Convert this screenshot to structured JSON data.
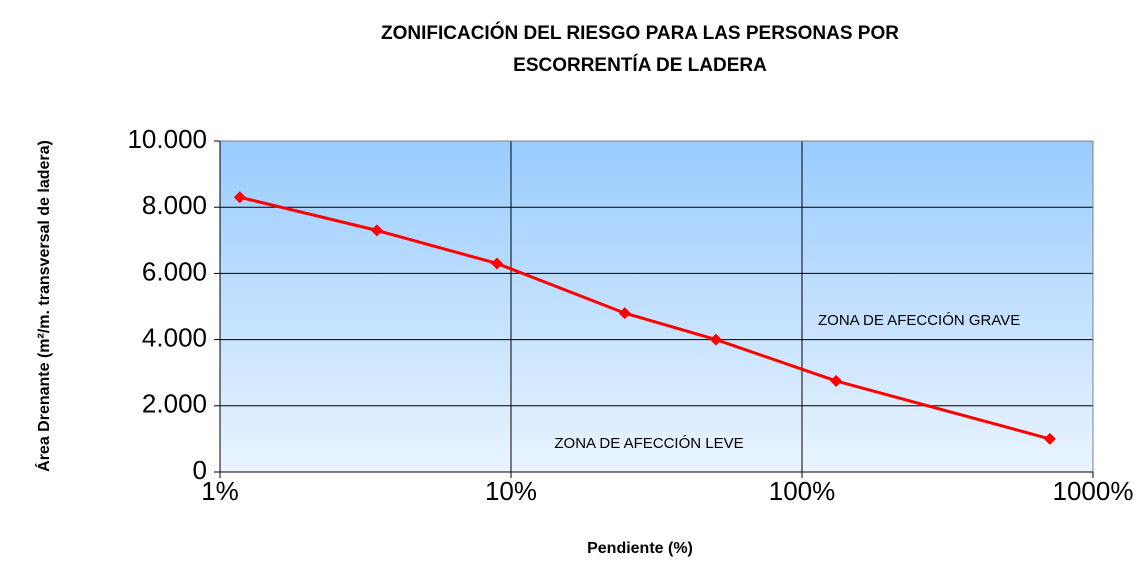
{
  "chart_data": {
    "type": "line",
    "title": "ZONIFICACIÓN DEL RIESGO PARA LAS PERSONAS POR ESCORRENTÍA DE LADERA",
    "x_label": "Pendiente (%)",
    "y_label": "Área Drenante (m²/m. transversal de ladera)",
    "x": [
      1.17,
      3.46,
      8.95,
      24.6,
      50.6,
      131,
      711
    ],
    "series": [
      {
        "name": "Área Drenante",
        "color": "#ff0000",
        "values": [
          8300,
          7300,
          6300,
          4800,
          4000,
          2750,
          1000
        ]
      }
    ],
    "x_log": true,
    "xlim": [
      1,
      1000
    ],
    "xticks": [
      {
        "value": 1,
        "label": "1%"
      },
      {
        "value": 10,
        "label": "10%"
      },
      {
        "value": 100,
        "label": "100%"
      },
      {
        "value": 1000,
        "label": "1000%"
      }
    ],
    "ylim": [
      0,
      10000
    ],
    "yticks": [
      0,
      {
        "value": 2000,
        "label": "2.000"
      },
      {
        "value": 4000,
        "label": "4.000"
      },
      {
        "value": 6000,
        "label": "6.000"
      },
      {
        "value": 8000,
        "label": "8.000"
      },
      {
        "value": 10000,
        "label": "10.000"
      }
    ],
    "grid": true,
    "annotations": [
      "ZONA DE AFECCIÓN GRAVE",
      "ZONA DE AFECCIÓN LEVE"
    ]
  }
}
